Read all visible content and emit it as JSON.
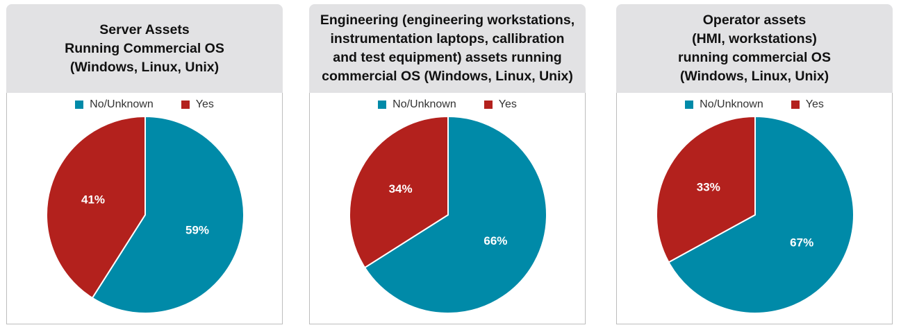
{
  "chart_data": [
    {
      "type": "pie",
      "title": [
        "Server Assets",
        "Running Commercial OS",
        "(Windows, Linux, Unix)"
      ],
      "legend": [
        "No/Unknown",
        "Yes"
      ],
      "labels": [
        "No/Unknown",
        "Yes"
      ],
      "values": [
        59,
        41
      ],
      "value_labels": [
        "59%",
        "41%"
      ],
      "colors": [
        "#008aa8",
        "#b3211d"
      ],
      "legend_position": "top"
    },
    {
      "type": "pie",
      "title": [
        "Engineering (engineering workstations,",
        "instrumentation laptops, callibration",
        "and test equipment) assets running",
        "commercial OS (Windows, Linux, Unix)"
      ],
      "legend": [
        "No/Unknown",
        "Yes"
      ],
      "labels": [
        "No/Unknown",
        "Yes"
      ],
      "values": [
        66,
        34
      ],
      "value_labels": [
        "66%",
        "34%"
      ],
      "colors": [
        "#008aa8",
        "#b3211d"
      ],
      "legend_position": "top"
    },
    {
      "type": "pie",
      "title": [
        "Operator assets",
        "(HMI, workstations)",
        "running commercial OS",
        "(Windows, Linux, Unix)"
      ],
      "legend": [
        "No/Unknown",
        "Yes"
      ],
      "labels": [
        "No/Unknown",
        "Yes"
      ],
      "values": [
        67,
        33
      ],
      "value_labels": [
        "67%",
        "33%"
      ],
      "colors": [
        "#008aa8",
        "#b3211d"
      ],
      "legend_position": "top"
    }
  ]
}
